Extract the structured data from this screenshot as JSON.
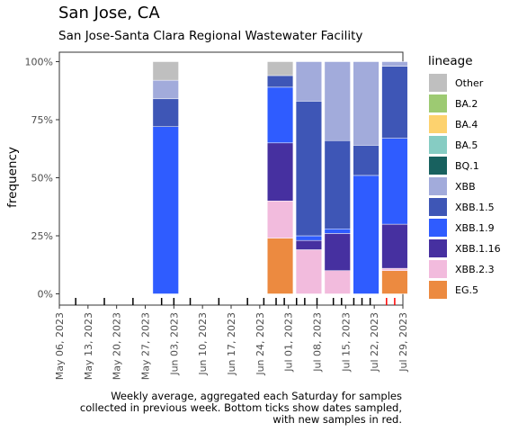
{
  "chart_data": {
    "type": "bar",
    "title": "San Jose, CA",
    "subtitle": "San Jose-Santa Clara Regional Wastewater Facility",
    "ylabel": "frequency",
    "xlabel": "",
    "ylim": [
      0,
      1
    ],
    "y_ticks": [
      "0%",
      "25%",
      "50%",
      "75%",
      "100%"
    ],
    "x_ticks": [
      "May 06, 2023",
      "May 13, 2023",
      "May 20, 2023",
      "May 27, 2023",
      "Jun 03, 2023",
      "Jun 10, 2023",
      "Jun 17, 2023",
      "Jun 24, 2023",
      "Jul 01, 2023",
      "Jul 08, 2023",
      "Jul 15, 2023",
      "Jul 22, 2023",
      "Jul 29, 2023"
    ],
    "x_range": [
      "2023-05-06",
      "2023-07-29"
    ],
    "legend": {
      "title": "lineage",
      "position": "right",
      "entries": [
        {
          "name": "Other",
          "color": "#bfbfbf"
        },
        {
          "name": "BA.2",
          "color": "#9dca72"
        },
        {
          "name": "BA.4",
          "color": "#fdd26e"
        },
        {
          "name": "BA.5",
          "color": "#86ccc3"
        },
        {
          "name": "BQ.1",
          "color": "#18615f"
        },
        {
          "name": "XBB",
          "color": "#a2abdb"
        },
        {
          "name": "XBB.1.5",
          "color": "#3e56b6"
        },
        {
          "name": "XBB.1.9",
          "color": "#2f5cff"
        },
        {
          "name": "XBB.1.16",
          "color": "#4630a0"
        },
        {
          "name": "XBB.2.3",
          "color": "#f2bbdd"
        },
        {
          "name": "EG.5",
          "color": "#ec8a40"
        }
      ]
    },
    "bars": [
      {
        "date": "2023-06-01",
        "stack": [
          {
            "lineage": "XBB.1.9",
            "value": 0.72
          },
          {
            "lineage": "XBB.1.5",
            "value": 0.12
          },
          {
            "lineage": "XBB",
            "value": 0.08
          },
          {
            "lineage": "Other",
            "value": 0.08
          }
        ]
      },
      {
        "date": "2023-06-29",
        "stack": [
          {
            "lineage": "EG.5",
            "value": 0.24
          },
          {
            "lineage": "XBB.2.3",
            "value": 0.16
          },
          {
            "lineage": "XBB.1.16",
            "value": 0.25
          },
          {
            "lineage": "XBB.1.9",
            "value": 0.24
          },
          {
            "lineage": "XBB.1.5",
            "value": 0.05
          },
          {
            "lineage": "Other",
            "value": 0.06
          }
        ]
      },
      {
        "date": "2023-07-06",
        "stack": [
          {
            "lineage": "XBB.2.3",
            "value": 0.19
          },
          {
            "lineage": "XBB.1.16",
            "value": 0.04
          },
          {
            "lineage": "XBB.1.9",
            "value": 0.02
          },
          {
            "lineage": "XBB.1.5",
            "value": 0.58
          },
          {
            "lineage": "XBB",
            "value": 0.17
          }
        ]
      },
      {
        "date": "2023-07-13",
        "stack": [
          {
            "lineage": "XBB.2.3",
            "value": 0.1
          },
          {
            "lineage": "XBB.1.16",
            "value": 0.16
          },
          {
            "lineage": "XBB.1.9",
            "value": 0.02
          },
          {
            "lineage": "XBB.1.5",
            "value": 0.38
          },
          {
            "lineage": "XBB",
            "value": 0.34
          }
        ]
      },
      {
        "date": "2023-07-20",
        "stack": [
          {
            "lineage": "XBB.1.9",
            "value": 0.51
          },
          {
            "lineage": "XBB.1.5",
            "value": 0.13
          },
          {
            "lineage": "XBB",
            "value": 0.36
          }
        ]
      },
      {
        "date": "2023-07-27",
        "stack": [
          {
            "lineage": "EG.5",
            "value": 0.1
          },
          {
            "lineage": "XBB.2.3",
            "value": 0.01
          },
          {
            "lineage": "XBB.1.16",
            "value": 0.19
          },
          {
            "lineage": "XBB.1.9",
            "value": 0.37
          },
          {
            "lineage": "XBB.1.5",
            "value": 0.31
          },
          {
            "lineage": "XBB",
            "value": 0.02
          }
        ]
      }
    ],
    "bar_width_days": 6.3,
    "sample_dates": [
      {
        "date": "2023-05-10",
        "new": false
      },
      {
        "date": "2023-05-17",
        "new": false
      },
      {
        "date": "2023-05-24",
        "new": false
      },
      {
        "date": "2023-05-31",
        "new": false
      },
      {
        "date": "2023-06-03",
        "new": false
      },
      {
        "date": "2023-06-07",
        "new": false
      },
      {
        "date": "2023-06-14",
        "new": false
      },
      {
        "date": "2023-06-21",
        "new": false
      },
      {
        "date": "2023-06-25",
        "new": false
      },
      {
        "date": "2023-06-28",
        "new": false
      },
      {
        "date": "2023-06-30",
        "new": false
      },
      {
        "date": "2023-07-03",
        "new": false
      },
      {
        "date": "2023-07-05",
        "new": false
      },
      {
        "date": "2023-07-08",
        "new": false
      },
      {
        "date": "2023-07-12",
        "new": false
      },
      {
        "date": "2023-07-14",
        "new": false
      },
      {
        "date": "2023-07-17",
        "new": false
      },
      {
        "date": "2023-07-19",
        "new": false
      },
      {
        "date": "2023-07-21",
        "new": false
      },
      {
        "date": "2023-07-25",
        "new": true
      },
      {
        "date": "2023-07-27",
        "new": true
      }
    ],
    "caption": [
      "Weekly average, aggregated each Saturday for samples",
      "collected in previous week. Bottom ticks show dates sampled,",
      "with new samples in red."
    ],
    "grid": false
  }
}
